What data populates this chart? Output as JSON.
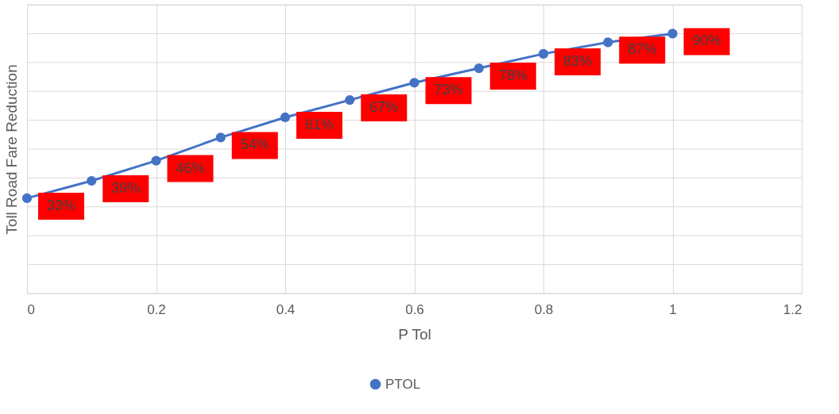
{
  "chart_data": {
    "type": "line",
    "xlabel": "P Tol",
    "ylabel": "Toll Road Fare Reduction",
    "x": [
      0,
      0.1,
      0.2,
      0.3,
      0.4,
      0.5,
      0.6,
      0.7,
      0.8,
      0.9,
      1.0
    ],
    "series": [
      {
        "name": "PTOL",
        "color": "#4472c4",
        "values": [
          33,
          39,
          46,
          54,
          61,
          67,
          73,
          78,
          83,
          87,
          90
        ],
        "value_labels": [
          "33%",
          "39%",
          "46%",
          "54%",
          "61%",
          "67%",
          "73%",
          "78%",
          "83%",
          "87%",
          "90%"
        ]
      }
    ],
    "xlim": [
      0,
      1.2
    ],
    "xticks": [
      0,
      0.2,
      0.4,
      0.6,
      0.8,
      1,
      1.2
    ],
    "ylim": [
      0,
      100
    ],
    "yticks": [
      {
        "value": 0,
        "label": null
      },
      {
        "value": 10,
        "label": null
      },
      {
        "value": 20,
        "label": null
      },
      {
        "value": 30,
        "label": null
      },
      {
        "value": 40,
        "label": null
      },
      {
        "value": 50,
        "label": null
      },
      {
        "value": 60,
        "label": null
      },
      {
        "value": 70,
        "label": null
      },
      {
        "value": 80,
        "label": null
      },
      {
        "value": 90,
        "label": null
      },
      {
        "value": 100,
        "label": null
      }
    ],
    "tick_labels": "x",
    "grid": true,
    "legend": "bottom",
    "marker": "circle",
    "line_style": "solid"
  }
}
